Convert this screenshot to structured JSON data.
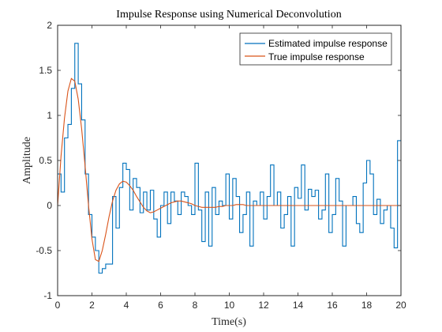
{
  "chart_data": {
    "type": "line",
    "title": "Impulse Response using Numerical Deconvolution",
    "xlabel": "Time(s)",
    "ylabel": "Amplitude",
    "xlim": [
      0,
      20
    ],
    "ylim": [
      -1,
      2
    ],
    "xticks": [
      "0",
      "2",
      "4",
      "6",
      "8",
      "10",
      "12",
      "14",
      "16",
      "18",
      "20"
    ],
    "yticks": [
      "-1",
      "-0.5",
      "0",
      "0.5",
      "1",
      "1.5",
      "2"
    ],
    "grid": false,
    "legend_position": "top-right",
    "series": [
      {
        "name": "Estimated impulse response",
        "style": "stairs",
        "color": "#0072BD",
        "x": [
          0,
          0.2,
          0.4,
          0.6,
          0.8,
          1.0,
          1.2,
          1.4,
          1.6,
          1.8,
          2.0,
          2.2,
          2.4,
          2.6,
          2.8,
          3.0,
          3.2,
          3.4,
          3.6,
          3.8,
          4.0,
          4.2,
          4.4,
          4.6,
          4.8,
          5.0,
          5.2,
          5.4,
          5.6,
          5.8,
          6.0,
          6.2,
          6.4,
          6.6,
          6.8,
          7.0,
          7.2,
          7.4,
          7.6,
          7.8,
          8.0,
          8.2,
          8.4,
          8.6,
          8.8,
          9.0,
          9.2,
          9.4,
          9.6,
          9.8,
          10.0,
          10.2,
          10.4,
          10.6,
          10.8,
          11.0,
          11.2,
          11.4,
          11.6,
          11.8,
          12.0,
          12.2,
          12.4,
          12.6,
          12.8,
          13.0,
          13.2,
          13.4,
          13.6,
          13.8,
          14.0,
          14.2,
          14.4,
          14.6,
          14.8,
          15.0,
          15.2,
          15.4,
          15.6,
          15.8,
          16.0,
          16.2,
          16.4,
          16.6,
          16.8,
          17.0,
          17.2,
          17.4,
          17.6,
          17.8,
          18.0,
          18.2,
          18.4,
          18.6,
          18.8,
          19.0,
          19.2,
          19.4,
          19.6,
          19.8,
          20.0
        ],
        "values": [
          0.35,
          0.15,
          0.75,
          0.9,
          1.3,
          1.8,
          1.35,
          0.95,
          0.35,
          -0.1,
          -0.35,
          -0.5,
          -0.75,
          -0.7,
          -0.65,
          -0.65,
          0.1,
          -0.25,
          0.2,
          0.47,
          0.4,
          -0.05,
          0.3,
          0.2,
          -0.08,
          0.15,
          -0.05,
          0.17,
          -0.15,
          -0.35,
          0.0,
          0.15,
          -0.2,
          0.15,
          0.05,
          -0.1,
          0.15,
          0.1,
          0.0,
          -0.1,
          0.47,
          -0.05,
          -0.4,
          0.15,
          -0.45,
          0.2,
          -0.1,
          0.05,
          0.0,
          0.35,
          -0.15,
          0.3,
          0.1,
          -0.3,
          -0.1,
          0.15,
          -0.45,
          0.05,
          0.0,
          0.15,
          -0.15,
          0.1,
          0.45,
          0.0,
          0.15,
          -0.25,
          -0.1,
          0.1,
          -0.45,
          0.2,
          0.08,
          0.45,
          -0.05,
          0.18,
          0.1,
          0.17,
          -0.15,
          -0.05,
          0.35,
          -0.3,
          -0.1,
          0.3,
          0.05,
          -0.45,
          0.0,
          0.0,
          0.1,
          -0.2,
          -0.3,
          0.25,
          0.5,
          0.35,
          -0.1,
          0.07,
          -0.2,
          -0.05,
          0.0,
          -0.25,
          -0.47,
          0.72,
          0.72
        ]
      },
      {
        "name": "True impulse response",
        "style": "line",
        "color": "#D95319",
        "x": [
          0,
          0.2,
          0.4,
          0.6,
          0.8,
          1.0,
          1.2,
          1.4,
          1.6,
          1.8,
          2.0,
          2.2,
          2.4,
          2.6,
          2.8,
          3.0,
          3.2,
          3.4,
          3.6,
          3.8,
          4.0,
          4.2,
          4.4,
          4.6,
          4.8,
          5.0,
          5.2,
          5.4,
          5.6,
          5.8,
          6.0,
          6.2,
          6.4,
          6.6,
          6.8,
          7.0,
          7.2,
          7.4,
          7.6,
          7.8,
          8.0,
          8.2,
          8.4,
          8.6,
          8.8,
          9.0,
          9.2,
          9.4,
          9.6,
          9.8,
          10.0,
          10.2,
          10.4,
          10.6,
          10.8,
          11.0,
          11.2,
          11.4,
          11.6,
          11.8,
          12.0,
          12.2,
          12.4,
          12.6,
          12.8,
          13.0,
          13.2,
          13.4,
          13.6,
          13.8,
          14.0,
          14.2,
          14.4,
          14.6,
          14.8,
          15.0,
          15.2,
          15.4,
          15.6,
          15.8,
          16.0,
          16.2,
          16.4,
          16.6,
          16.8,
          17.0,
          17.2,
          17.4,
          17.6,
          17.8,
          18.0,
          18.2,
          18.4,
          18.6,
          18.8,
          19.0,
          19.2,
          19.4,
          19.6,
          19.8,
          20.0
        ],
        "values": [
          0,
          0.55,
          0.97,
          1.27,
          1.41,
          1.38,
          1.18,
          0.85,
          0.44,
          0.0,
          -0.37,
          -0.6,
          -0.62,
          -0.5,
          -0.32,
          -0.12,
          0.05,
          0.17,
          0.24,
          0.27,
          0.26,
          0.22,
          0.17,
          0.1,
          0.04,
          -0.02,
          -0.06,
          -0.08,
          -0.07,
          -0.05,
          -0.03,
          -0.01,
          0.01,
          0.03,
          0.04,
          0.05,
          0.05,
          0.04,
          0.03,
          0.02,
          0.0,
          -0.01,
          -0.02,
          -0.02,
          -0.02,
          -0.02,
          -0.02,
          -0.01,
          -0.01,
          0.0,
          0.0,
          0.0,
          0.01,
          0.01,
          0.01,
          0.0,
          0.0,
          0.0,
          0.0,
          0.0,
          0.0,
          0.0,
          0.0,
          0.0,
          0.0,
          0.0,
          0.0,
          0.0,
          0.0,
          0.0,
          0.0,
          0.0,
          0.0,
          0.0,
          0.0,
          0.0,
          0.0,
          0.0,
          0.0,
          0.0,
          0.0,
          0.0,
          0.0,
          0.0,
          0.0,
          0.0,
          0.0,
          0.0,
          0.0,
          0.0,
          0.0,
          0.0,
          0.0,
          0.0,
          0.0,
          0.0,
          0.0,
          0.0,
          0.0,
          0.0,
          0.0
        ]
      }
    ]
  }
}
